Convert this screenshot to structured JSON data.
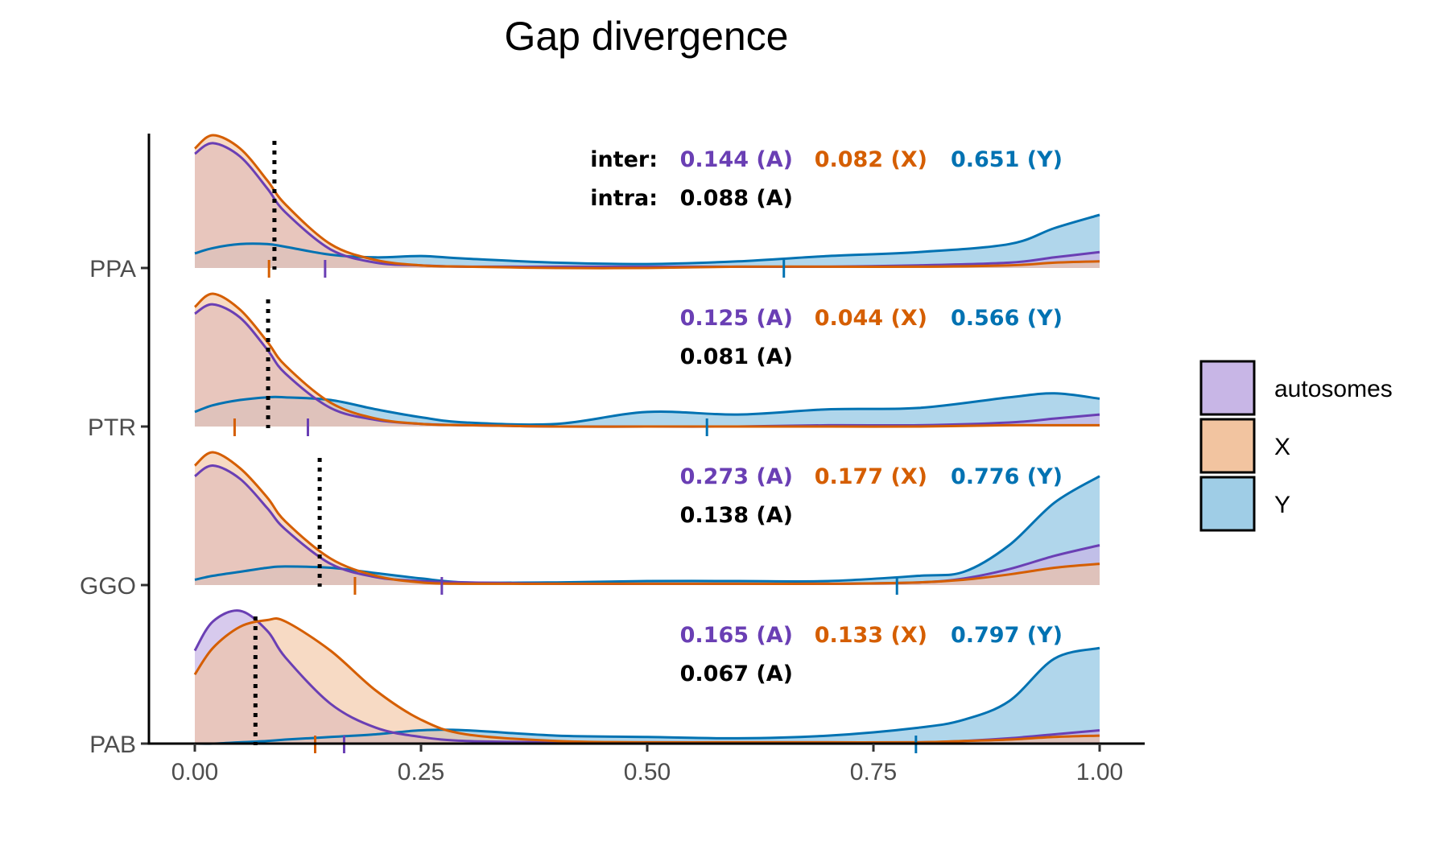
{
  "chart_data": {
    "type": "ridgeline-density",
    "title": "Gap divergence",
    "xlabel": "",
    "ylabel": "",
    "xlim": [
      0,
      1
    ],
    "x_ticks": [
      "0.00",
      "0.25",
      "0.50",
      "0.75",
      "1.00"
    ],
    "x_tick_values": [
      0,
      0.25,
      0.5,
      0.75,
      1.0
    ],
    "groups": [
      "PPA",
      "PTR",
      "GGO",
      "PAB"
    ],
    "annotation_labels": {
      "inter": "inter:",
      "intra": "intra:"
    },
    "legend": {
      "placement": "right",
      "entries": [
        {
          "key": "autosomes",
          "label": "autosomes"
        },
        {
          "key": "X",
          "label": "X"
        },
        {
          "key": "Y",
          "label": "Y"
        }
      ]
    },
    "colors": {
      "autosomes_line": "#6a3fb4",
      "autosomes_fill": "#c8b6e6",
      "X_line": "#d55e00",
      "X_fill": "#f2c4a0",
      "Y_line": "#0072b2",
      "Y_fill": "#9fcde6",
      "overlap_fill": "#a06a72",
      "intra_line": "#000000"
    },
    "ridges": [
      {
        "group": "PPA",
        "inter": {
          "A": "0.144 (A)",
          "X": "0.082 (X)",
          "Y": "0.651 (Y)"
        },
        "intra": "0.088 (A)",
        "inter_values": {
          "A": 0.144,
          "X": 0.082,
          "Y": 0.651
        },
        "intra_value": 0.088,
        "show_row_labels": true,
        "density": {
          "x": [
            0,
            0.02,
            0.05,
            0.08,
            0.1,
            0.15,
            0.2,
            0.25,
            0.3,
            0.4,
            0.5,
            0.6,
            0.7,
            0.8,
            0.9,
            0.95,
            1.0
          ],
          "autosomes": [
            0.86,
            0.94,
            0.84,
            0.6,
            0.42,
            0.14,
            0.04,
            0.02,
            0.01,
            0.01,
            0.01,
            0.01,
            0.01,
            0.02,
            0.04,
            0.08,
            0.12
          ],
          "X": [
            0.9,
            1.0,
            0.9,
            0.66,
            0.48,
            0.18,
            0.06,
            0.02,
            0.01,
            0.0,
            0.0,
            0.01,
            0.01,
            0.01,
            0.02,
            0.04,
            0.05
          ],
          "Y": [
            0.11,
            0.15,
            0.18,
            0.18,
            0.16,
            0.1,
            0.08,
            0.09,
            0.07,
            0.04,
            0.03,
            0.05,
            0.09,
            0.12,
            0.18,
            0.3,
            0.4
          ]
        }
      },
      {
        "group": "PTR",
        "inter": {
          "A": "0.125 (A)",
          "X": "0.044 (X)",
          "Y": "0.566 (Y)"
        },
        "intra": "0.081 (A)",
        "inter_values": {
          "A": 0.125,
          "X": 0.044,
          "Y": 0.566
        },
        "intra_value": 0.081,
        "show_row_labels": false,
        "density": {
          "x": [
            0,
            0.02,
            0.05,
            0.08,
            0.1,
            0.15,
            0.2,
            0.25,
            0.3,
            0.4,
            0.5,
            0.6,
            0.7,
            0.8,
            0.9,
            0.95,
            1.0
          ],
          "autosomes": [
            0.85,
            0.92,
            0.82,
            0.58,
            0.4,
            0.14,
            0.05,
            0.02,
            0.01,
            0.0,
            0.0,
            0.0,
            0.01,
            0.01,
            0.03,
            0.06,
            0.09
          ],
          "X": [
            0.9,
            1.0,
            0.88,
            0.64,
            0.46,
            0.18,
            0.06,
            0.02,
            0.01,
            0.0,
            0.0,
            0.0,
            0.0,
            0.0,
            0.01,
            0.01,
            0.01
          ],
          "Y": [
            0.11,
            0.16,
            0.2,
            0.22,
            0.22,
            0.2,
            0.13,
            0.07,
            0.03,
            0.02,
            0.11,
            0.09,
            0.13,
            0.14,
            0.22,
            0.25,
            0.21
          ]
        }
      },
      {
        "group": "GGO",
        "inter": {
          "A": "0.273 (A)",
          "X": "0.177 (X)",
          "Y": "0.776 (Y)"
        },
        "intra": "0.138 (A)",
        "inter_values": {
          "A": 0.273,
          "X": 0.177,
          "Y": 0.776
        },
        "intra_value": 0.138,
        "show_row_labels": false,
        "density": {
          "x": [
            0,
            0.02,
            0.05,
            0.08,
            0.1,
            0.15,
            0.2,
            0.25,
            0.3,
            0.4,
            0.5,
            0.6,
            0.7,
            0.8,
            0.85,
            0.9,
            0.95,
            1.0
          ],
          "autosomes": [
            0.82,
            0.9,
            0.8,
            0.58,
            0.42,
            0.16,
            0.06,
            0.03,
            0.02,
            0.01,
            0.01,
            0.01,
            0.01,
            0.02,
            0.05,
            0.12,
            0.22,
            0.3
          ],
          "X": [
            0.9,
            1.0,
            0.88,
            0.66,
            0.48,
            0.2,
            0.07,
            0.02,
            0.01,
            0.01,
            0.01,
            0.01,
            0.01,
            0.02,
            0.04,
            0.08,
            0.13,
            0.16
          ],
          "Y": [
            0.04,
            0.07,
            0.1,
            0.13,
            0.14,
            0.13,
            0.09,
            0.05,
            0.02,
            0.02,
            0.03,
            0.03,
            0.03,
            0.07,
            0.1,
            0.3,
            0.62,
            0.82
          ]
        }
      },
      {
        "group": "PAB",
        "inter": {
          "A": "0.165 (A)",
          "X": "0.133 (X)",
          "Y": "0.797 (Y)"
        },
        "intra": "0.067 (A)",
        "inter_values": {
          "A": 0.165,
          "X": 0.133,
          "Y": 0.797
        },
        "intra_value": 0.067,
        "show_row_labels": false,
        "density": {
          "x": [
            0,
            0.02,
            0.05,
            0.08,
            0.1,
            0.15,
            0.2,
            0.25,
            0.3,
            0.4,
            0.5,
            0.6,
            0.7,
            0.8,
            0.85,
            0.9,
            0.95,
            1.0
          ],
          "autosomes": [
            0.7,
            0.92,
            1.0,
            0.85,
            0.65,
            0.3,
            0.12,
            0.05,
            0.02,
            0.01,
            0.01,
            0.01,
            0.01,
            0.01,
            0.02,
            0.04,
            0.07,
            0.1
          ],
          "X": [
            0.52,
            0.72,
            0.88,
            0.93,
            0.92,
            0.7,
            0.4,
            0.18,
            0.07,
            0.02,
            0.01,
            0.01,
            0.01,
            0.01,
            0.02,
            0.03,
            0.05,
            0.06
          ],
          "Y": [
            0.0,
            0.0,
            0.01,
            0.02,
            0.03,
            0.05,
            0.07,
            0.1,
            0.1,
            0.06,
            0.05,
            0.04,
            0.06,
            0.12,
            0.18,
            0.32,
            0.64,
            0.72
          ]
        }
      }
    ]
  }
}
